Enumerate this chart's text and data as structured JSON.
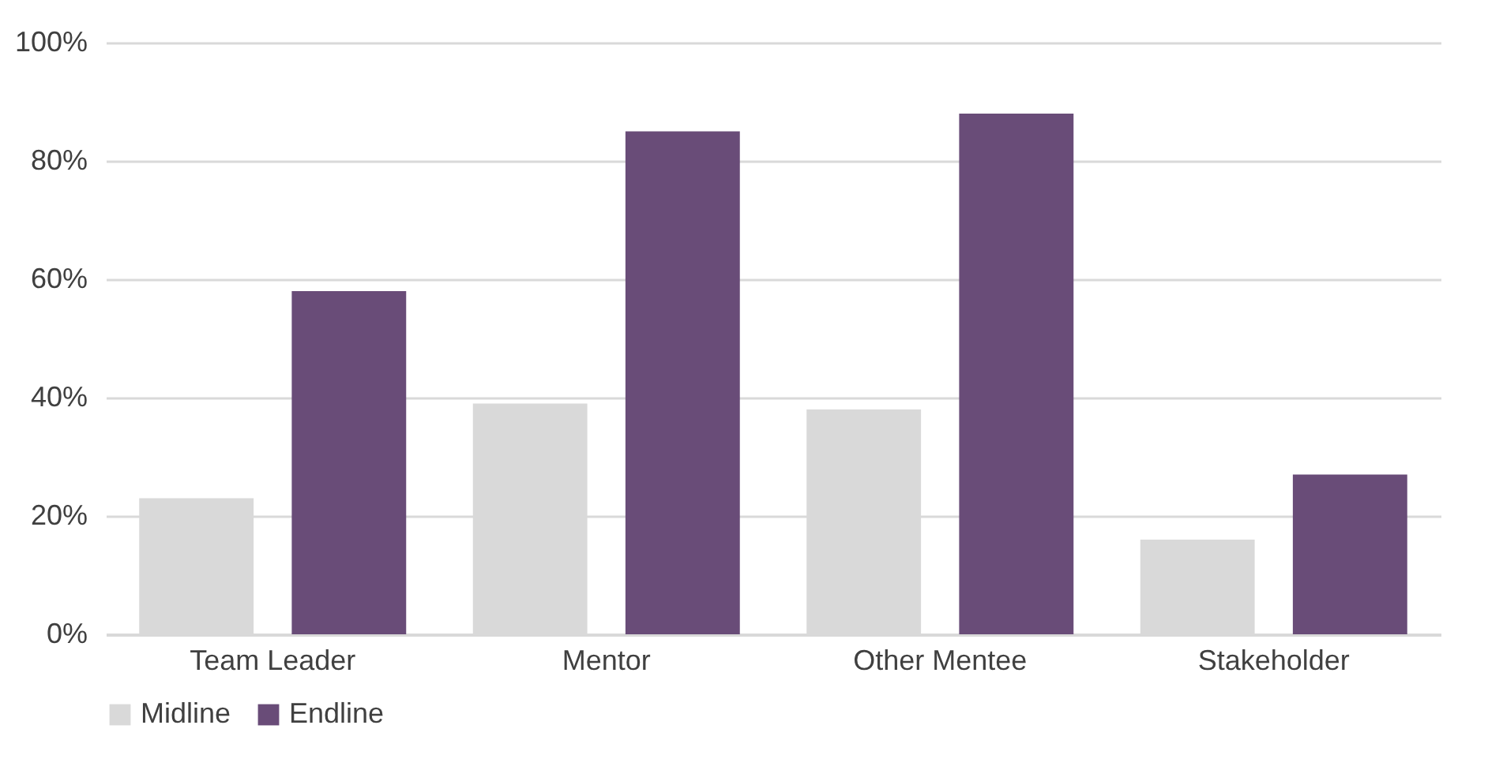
{
  "chart_data": {
    "type": "bar",
    "categories": [
      "Team Leader",
      "Mentor",
      "Other Mentee",
      "Stakeholder"
    ],
    "series": [
      {
        "name": "Midline",
        "color": "#d9d9d9",
        "values": [
          23,
          39,
          38,
          16
        ]
      },
      {
        "name": "Endline",
        "color": "#694c78",
        "values": [
          58,
          85,
          88,
          27
        ]
      }
    ],
    "ylim": [
      0,
      100
    ],
    "yticks": [
      {
        "value": 0,
        "label": "0%"
      },
      {
        "value": 20,
        "label": "20%"
      },
      {
        "value": 40,
        "label": "40%"
      },
      {
        "value": 60,
        "label": "60%"
      },
      {
        "value": 80,
        "label": "80%"
      },
      {
        "value": 100,
        "label": "100%"
      }
    ],
    "grid": "y",
    "legend": "bottom"
  }
}
